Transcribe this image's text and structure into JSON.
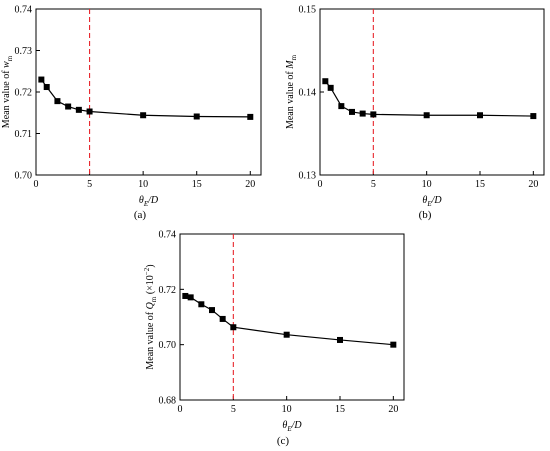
{
  "chart_data": [
    {
      "type": "line",
      "panel_label": "(a)",
      "x": [
        0.5,
        1,
        2,
        3,
        4,
        5,
        10,
        15,
        20
      ],
      "series": [
        {
          "values": [
            0.723,
            0.7212,
            0.7178,
            0.7165,
            0.7157,
            0.7153,
            0.7144,
            0.7141,
            0.714
          ],
          "color": "#000000",
          "marker": "square"
        }
      ],
      "xlabel": {
        "prefix": "θ",
        "sub": "E",
        "suffix": "/D"
      },
      "ylabel": {
        "prefix": "Mean value of ",
        "var": "w",
        "sub": "m"
      },
      "xlim": [
        0,
        21
      ],
      "ylim": [
        0.7,
        0.74
      ],
      "xticks": [
        0,
        5,
        10,
        15,
        20
      ],
      "yticks": [
        0.7,
        0.71,
        0.72,
        0.73,
        0.74
      ],
      "ytick_labels": [
        "0.70",
        "0.71",
        "0.72",
        "0.73",
        "0.74"
      ],
      "xtick_labels": [
        "0",
        "5",
        "10",
        "15",
        "20"
      ],
      "ref_line": {
        "x": 5,
        "color": "#e8262d",
        "style": "dashed"
      }
    },
    {
      "type": "line",
      "panel_label": "(b)",
      "x": [
        0.5,
        1,
        2,
        3,
        4,
        5,
        10,
        15,
        20
      ],
      "series": [
        {
          "values": [
            0.1413,
            0.1405,
            0.1383,
            0.1376,
            0.1374,
            0.1373,
            0.1372,
            0.1372,
            0.1371
          ],
          "color": "#000000",
          "marker": "square"
        }
      ],
      "xlabel": {
        "prefix": "θ",
        "sub": "E",
        "suffix": "/D"
      },
      "ylabel": {
        "prefix": "Mean value of ",
        "var": "M",
        "sub": "m"
      },
      "xlim": [
        0,
        21
      ],
      "ylim": [
        0.13,
        0.15
      ],
      "xticks": [
        0,
        5,
        10,
        15,
        20
      ],
      "yticks": [
        0.13,
        0.14,
        0.15
      ],
      "ytick_labels": [
        "0.13",
        "0.14",
        "0.15"
      ],
      "xtick_labels": [
        "0",
        "5",
        "10",
        "15",
        "20"
      ],
      "ref_line": {
        "x": 5,
        "color": "#e8262d",
        "style": "dashed"
      }
    },
    {
      "type": "line",
      "panel_label": "(c)",
      "x": [
        0.5,
        1,
        2,
        3,
        4,
        5,
        10,
        15,
        20
      ],
      "series": [
        {
          "values": [
            0.7176,
            0.7171,
            0.7146,
            0.7125,
            0.7093,
            0.7063,
            0.7036,
            0.7017,
            0.7
          ],
          "color": "#000000",
          "marker": "square"
        }
      ],
      "xlabel": {
        "prefix": "θ",
        "sub": "E",
        "suffix": "/D"
      },
      "ylabel": {
        "prefix": "Mean value of ",
        "var": "Q",
        "sub": "m",
        "suffix": " (×10",
        "sup": "−2",
        "suffix2": ")"
      },
      "xlim": [
        0,
        21
      ],
      "ylim": [
        0.68,
        0.74
      ],
      "xticks": [
        0,
        5,
        10,
        15,
        20
      ],
      "yticks": [
        0.68,
        0.7,
        0.72,
        0.74
      ],
      "ytick_labels": [
        "0.68",
        "0.70",
        "0.72",
        "0.74"
      ],
      "xtick_labels": [
        "0",
        "5",
        "10",
        "15",
        "20"
      ],
      "ref_line": {
        "x": 5,
        "color": "#e8262d",
        "style": "dashed"
      }
    }
  ]
}
